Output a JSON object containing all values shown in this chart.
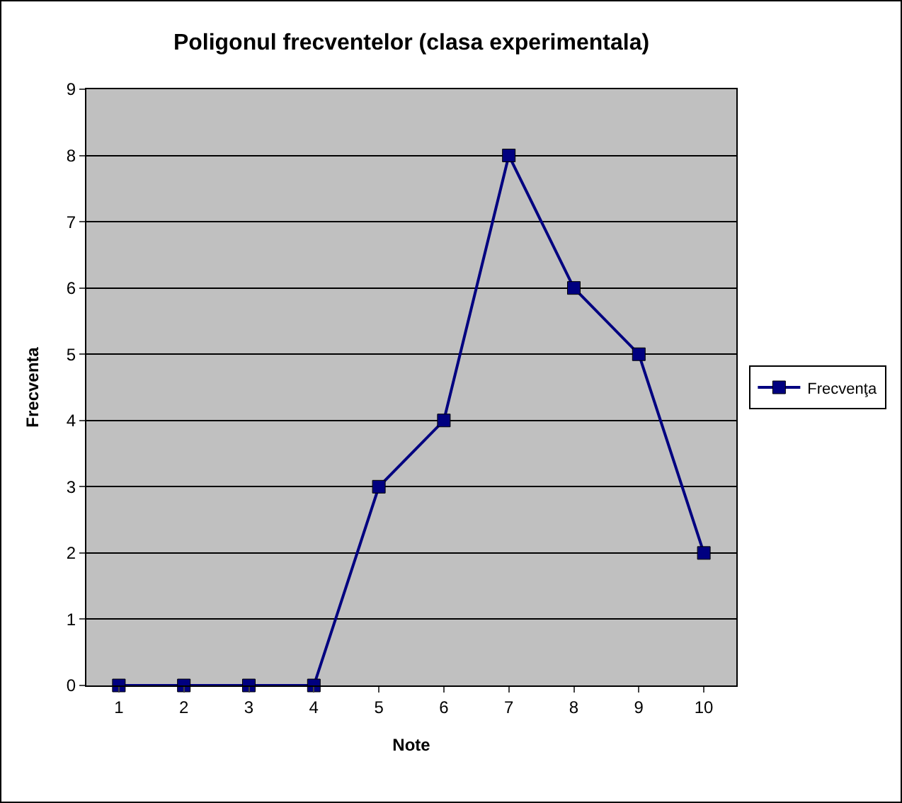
{
  "chart_data": {
    "type": "line",
    "title": "Poligonul frecventelor (clasa experimentala)",
    "xlabel": "Note",
    "ylabel": "Frecventa",
    "categories": [
      "1",
      "2",
      "3",
      "4",
      "5",
      "6",
      "7",
      "8",
      "9",
      "10"
    ],
    "series": [
      {
        "name": "Frecvenţa",
        "color": "#000080",
        "values": [
          0,
          0,
          0,
          0,
          3,
          4,
          8,
          6,
          5,
          2
        ]
      }
    ],
    "ylim": [
      0,
      9
    ],
    "yticks": [
      0,
      1,
      2,
      3,
      4,
      5,
      6,
      7,
      8,
      9
    ],
    "grid": "y",
    "legend": "right",
    "marker": "square",
    "line_style": "solid"
  }
}
